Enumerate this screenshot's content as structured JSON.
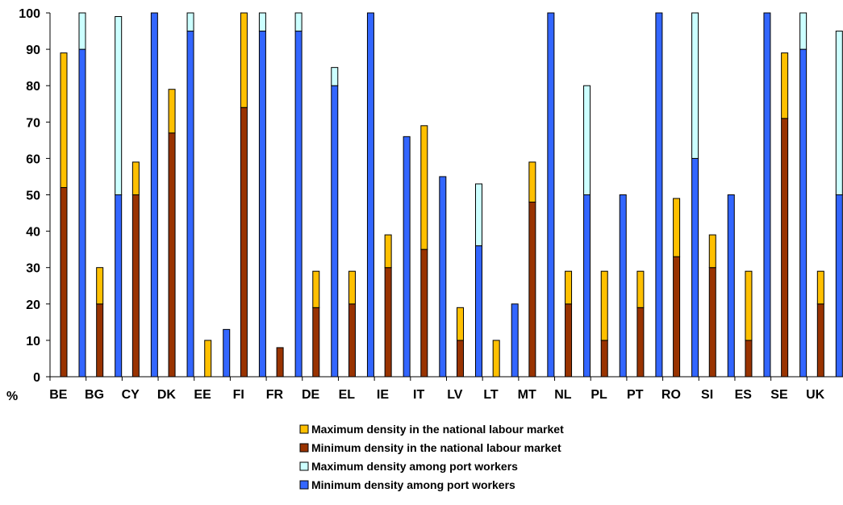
{
  "chart_data": {
    "type": "bar",
    "stacked": true,
    "grouped": true,
    "ylabel": "%",
    "ylim": [
      0,
      100
    ],
    "yticks": [
      0,
      10,
      20,
      30,
      40,
      50,
      60,
      70,
      80,
      90,
      100
    ],
    "grid": false,
    "legend_position": "bottom",
    "categories": [
      "BE",
      "BG",
      "CY",
      "DK",
      "EE",
      "FI",
      "FR",
      "DE",
      "EL",
      "IE",
      "IT",
      "LV",
      "LT",
      "MT",
      "NL",
      "PL",
      "PT",
      "RO",
      "SI",
      "ES",
      "SE",
      "UK"
    ],
    "series": [
      {
        "name": "Maximum density in the national labour market",
        "color": "#FFC000",
        "group": "national",
        "values": [
          89,
          30,
          59,
          79,
          10,
          100,
          8,
          29,
          29,
          39,
          69,
          19,
          10,
          59,
          29,
          29,
          29,
          49,
          39,
          29,
          89,
          29
        ]
      },
      {
        "name": "Minimum density in the national labour market",
        "color": "#993300",
        "group": "national",
        "values": [
          52,
          20,
          50,
          67,
          0,
          74,
          8,
          19,
          20,
          30,
          35,
          10,
          0,
          48,
          20,
          10,
          19,
          33,
          30,
          10,
          71,
          20
        ]
      },
      {
        "name": "Maximum density among port workers",
        "color": "#CCFFFF",
        "group": "port",
        "values": [
          100,
          99,
          100,
          100,
          13,
          100,
          100,
          85,
          100,
          66,
          55,
          53,
          20,
          100,
          80,
          50,
          100,
          100,
          50,
          100,
          100,
          95
        ]
      },
      {
        "name": "Minimum density among port workers",
        "color": "#3366FF",
        "group": "port",
        "values": [
          90,
          50,
          100,
          95,
          13,
          95,
          95,
          80,
          100,
          66,
          55,
          36,
          20,
          100,
          50,
          50,
          100,
          60,
          50,
          100,
          90,
          50
        ]
      }
    ]
  }
}
